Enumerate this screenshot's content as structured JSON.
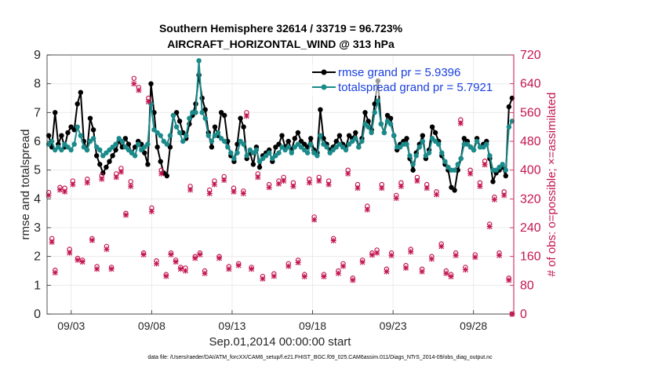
{
  "chart_data": {
    "type": "line",
    "title": "Southern Hemisphere 32614 / 33719 = 96.723%",
    "subtitle": "AIRCRAFT_HORIZONTAL_WIND @ 313 hPa",
    "xlabel": "Sep.01,2014 00:00:00 start",
    "ylabel": "rmse and totalspread",
    "ylabel_right": "# of obs: o=possible; ×=assimilated",
    "footnote": "data file: /Users/raeder/DAI/ATM_forcXX/CAM6_setup/f.e21.FHIST_BGC.f09_025.CAM6assim.011/Diags_NTrS_2014-09/obs_diag_output.nc",
    "xlim": [
      1.5,
      30.5
    ],
    "ylim": [
      0,
      9
    ],
    "ylim_right": [
      0,
      720
    ],
    "x_ticks": [
      3,
      8,
      13,
      18,
      23,
      28
    ],
    "x_tick_labels": [
      "09/03",
      "09/08",
      "09/13",
      "09/18",
      "09/23",
      "09/28"
    ],
    "y_ticks": [
      0,
      1,
      2,
      3,
      4,
      5,
      6,
      7,
      8,
      9
    ],
    "y_tick_labels": [
      "0",
      "1",
      "2",
      "3",
      "4",
      "5",
      "6",
      "7",
      "8",
      "9"
    ],
    "y_ticks_right": [
      0,
      80,
      160,
      240,
      320,
      400,
      480,
      560,
      640,
      720
    ],
    "y_tick_labels_right": [
      "0",
      "80",
      "160",
      "240",
      "320",
      "400",
      "480",
      "560",
      "640",
      "720"
    ],
    "grid": true,
    "legend_placement": "top-right",
    "colors": {
      "rmse": "#000000",
      "spread": "#1a8a8a",
      "obs": "#c3164f",
      "legend_text": "#1a3fe0",
      "grid": "#e6e6e6"
    },
    "series": [
      {
        "name": "rmse grand pr = 5.9396",
        "values": [
          6.2,
          5.8,
          7.0,
          5.9,
          6.2,
          5.8,
          6.3,
          6.5,
          6.4,
          7.3,
          7.7,
          6.0,
          5.7,
          6.8,
          6.4,
          5.5,
          5.2,
          4.9,
          5.1,
          5.3,
          5.5,
          5.7,
          6.0,
          5.8,
          6.1,
          5.9,
          5.6,
          5.8,
          6.0,
          5.9,
          5.6,
          5.2,
          8.0,
          7.0,
          5.8,
          5.3,
          4.9,
          4.8,
          5.8,
          6.9,
          7.0,
          6.7,
          6.3,
          6.1,
          6.6,
          6.9,
          7.3,
          8.3,
          7.5,
          7.1,
          6.3,
          5.8,
          6.5,
          6.2,
          7.0,
          6.9,
          6.0,
          5.5,
          5.3,
          5.9,
          6.8,
          6.5,
          5.4,
          5.6,
          5.2,
          5.8,
          5.1,
          5.5,
          5.6,
          5.7,
          5.3,
          5.8,
          5.9,
          6.2,
          5.8,
          6.0,
          5.7,
          6.1,
          6.3,
          6.0,
          5.9,
          5.8,
          6.1,
          5.7,
          5.6,
          7.1,
          6.1,
          5.9,
          5.7,
          5.8,
          6.0,
          6.2,
          5.9,
          5.8,
          6.2,
          6.1,
          6.3,
          5.8,
          6.1,
          7.0,
          6.7,
          6.4,
          7.3,
          8.1,
          6.6,
          6.3,
          6.9,
          6.8,
          6.2,
          5.7,
          5.9,
          6.0,
          6.1,
          5.4,
          5.0,
          5.6,
          5.9,
          6.2,
          5.4,
          5.7,
          6.5,
          6.3,
          6.0,
          5.5,
          5.2,
          5.0,
          4.4,
          4.3,
          5.0,
          5.4,
          6.1,
          6.0,
          5.8,
          5.7,
          6.1,
          5.8,
          5.9,
          6.0,
          5.4,
          4.6,
          4.9,
          5.0,
          5.1,
          4.8,
          7.2,
          7.5
        ]
      },
      {
        "name": "totalspread grand pr = 5.7921",
        "values": [
          5.9,
          6.0,
          5.7,
          5.8,
          5.7,
          5.9,
          5.8,
          5.7,
          5.9,
          6.5,
          6.2,
          5.8,
          5.7,
          6.0,
          6.1,
          5.8,
          5.7,
          5.5,
          5.6,
          5.7,
          5.8,
          5.9,
          6.1,
          6.0,
          5.8,
          5.7,
          5.6,
          5.5,
          5.9,
          5.7,
          5.8,
          5.9,
          7.3,
          6.4,
          6.3,
          6.2,
          6.0,
          5.9,
          6.2,
          6.9,
          6.5,
          6.3,
          6.0,
          6.2,
          6.8,
          7.0,
          7.0,
          8.8,
          7.0,
          6.8,
          6.2,
          6.0,
          6.2,
          6.3,
          6.1,
          6.0,
          5.8,
          5.6,
          5.4,
          5.6,
          6.0,
          5.9,
          5.5,
          5.7,
          5.6,
          5.7,
          5.3,
          5.4,
          5.5,
          5.6,
          5.4,
          5.5,
          5.6,
          5.8,
          5.7,
          5.8,
          5.6,
          5.8,
          5.9,
          5.8,
          5.7,
          5.6,
          5.9,
          5.6,
          5.5,
          6.2,
          5.9,
          5.8,
          5.6,
          5.7,
          5.8,
          5.9,
          5.8,
          5.7,
          5.9,
          6.0,
          6.1,
          5.8,
          6.0,
          6.6,
          6.5,
          6.3,
          7.0,
          7.4,
          6.6,
          6.3,
          6.7,
          6.6,
          6.2,
          5.8,
          5.8,
          5.9,
          5.9,
          5.5,
          5.2,
          5.5,
          5.8,
          6.0,
          5.5,
          5.6,
          6.1,
          6.0,
          5.9,
          5.6,
          5.3,
          5.1,
          5.0,
          5.0,
          5.2,
          5.4,
          5.9,
          5.9,
          5.8,
          5.7,
          6.0,
          5.8,
          5.8,
          5.9,
          5.5,
          5.0,
          5.0,
          5.1,
          5.2,
          5.0,
          6.5,
          6.7
        ]
      }
    ],
    "obs_possible": [
      [
        1.6,
        338
      ],
      [
        1.8,
        210
      ],
      [
        2.0,
        122
      ],
      [
        2.3,
        352
      ],
      [
        2.6,
        350
      ],
      [
        2.9,
        180
      ],
      [
        3.1,
        370
      ],
      [
        3.4,
        155
      ],
      [
        3.7,
        150
      ],
      [
        4.0,
        375
      ],
      [
        4.3,
        210
      ],
      [
        4.6,
        132
      ],
      [
        4.9,
        385
      ],
      [
        5.2,
        188
      ],
      [
        5.5,
        130
      ],
      [
        5.8,
        390
      ],
      [
        6.1,
        405
      ],
      [
        6.4,
        280
      ],
      [
        6.7,
        368
      ],
      [
        6.9,
        655
      ],
      [
        7.2,
        630
      ],
      [
        7.5,
        170
      ],
      [
        7.8,
        600
      ],
      [
        8.0,
        295
      ],
      [
        8.3,
        148
      ],
      [
        8.6,
        400
      ],
      [
        8.9,
        110
      ],
      [
        9.2,
        170
      ],
      [
        9.5,
        150
      ],
      [
        9.8,
        130
      ],
      [
        10.1,
        128
      ],
      [
        10.4,
        355
      ],
      [
        10.7,
        160
      ],
      [
        11.0,
        170
      ],
      [
        11.3,
        120
      ],
      [
        11.6,
        345
      ],
      [
        11.9,
        370
      ],
      [
        12.2,
        160
      ],
      [
        12.5,
        382
      ],
      [
        12.8,
        132
      ],
      [
        13.1,
        350
      ],
      [
        13.4,
        140
      ],
      [
        13.7,
        342
      ],
      [
        13.9,
        560
      ],
      [
        14.2,
        130
      ],
      [
        14.6,
        390
      ],
      [
        14.9,
        105
      ],
      [
        15.3,
        360
      ],
      [
        15.6,
        112
      ],
      [
        15.9,
        370
      ],
      [
        16.2,
        380
      ],
      [
        16.5,
        140
      ],
      [
        16.8,
        365
      ],
      [
        17.1,
        150
      ],
      [
        17.5,
        110
      ],
      [
        17.8,
        375
      ],
      [
        18.1,
        270
      ],
      [
        18.4,
        380
      ],
      [
        18.7,
        110
      ],
      [
        19.0,
        370
      ],
      [
        19.3,
        210
      ],
      [
        19.6,
        120
      ],
      [
        19.9,
        140
      ],
      [
        20.2,
        400
      ],
      [
        20.5,
        100
      ],
      [
        20.8,
        360
      ],
      [
        21.1,
        150
      ],
      [
        21.4,
        300
      ],
      [
        21.7,
        170
      ],
      [
        22.0,
        178
      ],
      [
        22.3,
        360
      ],
      [
        22.6,
        125
      ],
      [
        22.9,
        170
      ],
      [
        23.2,
        330
      ],
      [
        23.5,
        365
      ],
      [
        23.8,
        135
      ],
      [
        24.1,
        180
      ],
      [
        24.5,
        380
      ],
      [
        24.8,
        125
      ],
      [
        25.1,
        360
      ],
      [
        25.4,
        160
      ],
      [
        25.7,
        340
      ],
      [
        26.0,
        195
      ],
      [
        26.3,
        120
      ],
      [
        26.6,
        110
      ],
      [
        26.9,
        170
      ],
      [
        27.2,
        540
      ],
      [
        27.5,
        130
      ],
      [
        27.8,
        400
      ],
      [
        28.1,
        165
      ],
      [
        28.4,
        365
      ],
      [
        28.7,
        425
      ],
      [
        29.0,
        250
      ],
      [
        29.3,
        325
      ],
      [
        29.6,
        170
      ],
      [
        29.9,
        340
      ],
      [
        30.2,
        100
      ],
      [
        30.4,
        0
      ]
    ],
    "obs_assimilated": [
      [
        1.6,
        330
      ],
      [
        1.8,
        200
      ],
      [
        2.0,
        115
      ],
      [
        2.3,
        345
      ],
      [
        2.6,
        340
      ],
      [
        2.9,
        170
      ],
      [
        3.1,
        360
      ],
      [
        3.4,
        150
      ],
      [
        3.7,
        145
      ],
      [
        4.0,
        365
      ],
      [
        4.3,
        205
      ],
      [
        4.6,
        125
      ],
      [
        4.9,
        375
      ],
      [
        5.2,
        180
      ],
      [
        5.5,
        125
      ],
      [
        5.8,
        380
      ],
      [
        6.1,
        395
      ],
      [
        6.4,
        275
      ],
      [
        6.7,
        355
      ],
      [
        6.9,
        640
      ],
      [
        7.2,
        622
      ],
      [
        7.5,
        165
      ],
      [
        7.8,
        590
      ],
      [
        8.0,
        285
      ],
      [
        8.3,
        140
      ],
      [
        8.6,
        390
      ],
      [
        8.9,
        105
      ],
      [
        9.2,
        165
      ],
      [
        9.5,
        145
      ],
      [
        9.8,
        125
      ],
      [
        10.1,
        120
      ],
      [
        10.4,
        345
      ],
      [
        10.7,
        155
      ],
      [
        11.0,
        165
      ],
      [
        11.3,
        113
      ],
      [
        11.6,
        335
      ],
      [
        11.9,
        360
      ],
      [
        12.2,
        155
      ],
      [
        12.5,
        372
      ],
      [
        12.8,
        125
      ],
      [
        13.1,
        340
      ],
      [
        13.4,
        135
      ],
      [
        13.7,
        335
      ],
      [
        13.9,
        550
      ],
      [
        14.2,
        125
      ],
      [
        14.6,
        380
      ],
      [
        14.9,
        98
      ],
      [
        15.3,
        352
      ],
      [
        15.6,
        105
      ],
      [
        15.9,
        362
      ],
      [
        16.2,
        370
      ],
      [
        16.5,
        133
      ],
      [
        16.8,
        355
      ],
      [
        17.1,
        143
      ],
      [
        17.5,
        104
      ],
      [
        17.8,
        365
      ],
      [
        18.1,
        262
      ],
      [
        18.4,
        370
      ],
      [
        18.7,
        104
      ],
      [
        19.0,
        360
      ],
      [
        19.3,
        204
      ],
      [
        19.6,
        113
      ],
      [
        19.9,
        133
      ],
      [
        20.2,
        390
      ],
      [
        20.5,
        94
      ],
      [
        20.8,
        350
      ],
      [
        21.1,
        144
      ],
      [
        21.4,
        290
      ],
      [
        21.7,
        164
      ],
      [
        22.0,
        170
      ],
      [
        22.3,
        350
      ],
      [
        22.6,
        118
      ],
      [
        22.9,
        163
      ],
      [
        23.2,
        322
      ],
      [
        23.5,
        355
      ],
      [
        23.8,
        128
      ],
      [
        24.1,
        173
      ],
      [
        24.5,
        370
      ],
      [
        24.8,
        118
      ],
      [
        25.1,
        350
      ],
      [
        25.4,
        153
      ],
      [
        25.7,
        332
      ],
      [
        26.0,
        188
      ],
      [
        26.3,
        113
      ],
      [
        26.6,
        104
      ],
      [
        26.9,
        163
      ],
      [
        27.2,
        530
      ],
      [
        27.5,
        123
      ],
      [
        27.8,
        390
      ],
      [
        28.1,
        158
      ],
      [
        28.4,
        355
      ],
      [
        28.7,
        415
      ],
      [
        29.0,
        243
      ],
      [
        29.3,
        318
      ],
      [
        29.6,
        163
      ],
      [
        29.9,
        330
      ],
      [
        30.2,
        94
      ],
      [
        30.4,
        0
      ]
    ]
  }
}
